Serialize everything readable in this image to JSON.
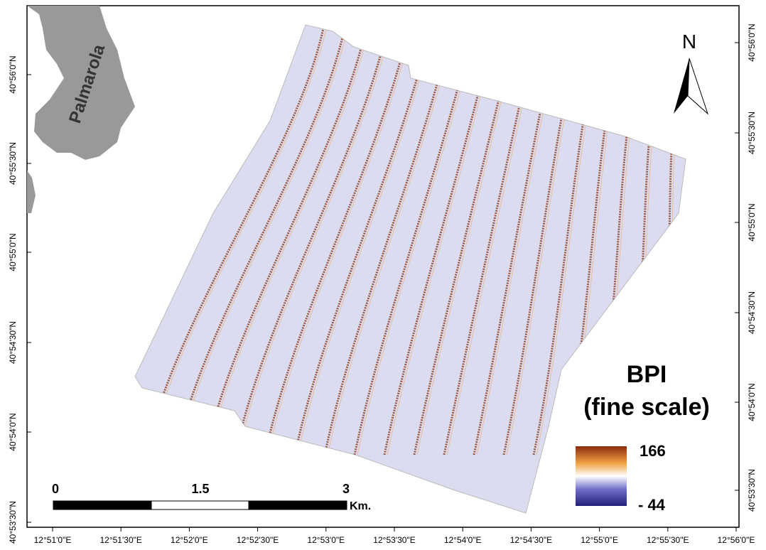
{
  "island_label": "Palmarola",
  "north_arrow": "N",
  "legend": {
    "title_lines": [
      "BPI",
      "(fine scale)"
    ],
    "max_label": "166",
    "min_label": "- 44"
  },
  "scale_bar": {
    "labels": [
      "0",
      "1.5",
      "3"
    ],
    "unit": "Km."
  },
  "lat_labels_left": [
    "40°56'0\"N",
    "40°55'30\"N",
    "40°55'0\"N",
    "40°54'30\"N",
    "40°54'0\"N",
    "40°53'30\"N"
  ],
  "lat_labels_right": [
    "40°56'0\"N",
    "40°55'30\"N",
    "40°55'0\"N",
    "40°54'30\"N",
    "40°54'0\"N",
    "40°53'30\"N"
  ],
  "lon_labels": [
    "12°51'0\"E",
    "12°51'30\"E",
    "12°52'0\"E",
    "12°52'30\"E",
    "12°53'0\"E",
    "12°53'30\"E",
    "12°54'0\"E",
    "12°54'30\"E",
    "12°55'0\"E",
    "12°55'30\"E",
    "12°56'0\"E"
  ]
}
